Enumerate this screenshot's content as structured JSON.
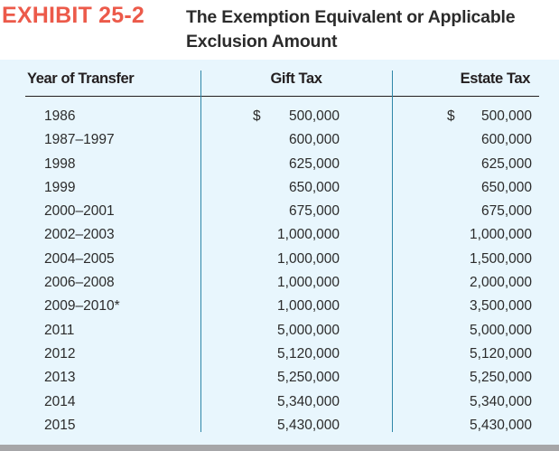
{
  "exhibit": {
    "label": "EXHIBIT 25-2",
    "title_line1": "The Exemption Equivalent or Applicable",
    "title_line2": "Exclusion Amount",
    "label_color": "#ec5a4a",
    "panel_color": "#e8f6fd",
    "divider_color": "#2e86a8"
  },
  "table": {
    "headers": {
      "year": "Year of Transfer",
      "gift": "Gift Tax",
      "estate": "Estate Tax"
    },
    "currency_symbol": "$",
    "rows": [
      {
        "year": "1986",
        "gift_currency": "$",
        "gift": "500,000",
        "estate_currency": "$",
        "estate": "500,000"
      },
      {
        "year": "1987–1997",
        "gift_currency": "",
        "gift": "600,000",
        "estate_currency": "",
        "estate": "600,000"
      },
      {
        "year": "1998",
        "gift_currency": "",
        "gift": "625,000",
        "estate_currency": "",
        "estate": "625,000"
      },
      {
        "year": "1999",
        "gift_currency": "",
        "gift": "650,000",
        "estate_currency": "",
        "estate": "650,000"
      },
      {
        "year": "2000–2001",
        "gift_currency": "",
        "gift": "675,000",
        "estate_currency": "",
        "estate": "675,000"
      },
      {
        "year": "2002–2003",
        "gift_currency": "",
        "gift": "1,000,000",
        "estate_currency": "",
        "estate": "1,000,000"
      },
      {
        "year": "2004–2005",
        "gift_currency": "",
        "gift": "1,000,000",
        "estate_currency": "",
        "estate": "1,500,000"
      },
      {
        "year": "2006–2008",
        "gift_currency": "",
        "gift": "1,000,000",
        "estate_currency": "",
        "estate": "2,000,000"
      },
      {
        "year": "2009–2010*",
        "gift_currency": "",
        "gift": "1,000,000",
        "estate_currency": "",
        "estate": "3,500,000"
      },
      {
        "year": "2011",
        "gift_currency": "",
        "gift": "5,000,000",
        "estate_currency": "",
        "estate": "5,000,000"
      },
      {
        "year": "2012",
        "gift_currency": "",
        "gift": "5,120,000",
        "estate_currency": "",
        "estate": "5,120,000"
      },
      {
        "year": "2013",
        "gift_currency": "",
        "gift": "5,250,000",
        "estate_currency": "",
        "estate": "5,250,000"
      },
      {
        "year": "2014",
        "gift_currency": "",
        "gift": "5,340,000",
        "estate_currency": "",
        "estate": "5,340,000"
      },
      {
        "year": "2015",
        "gift_currency": "",
        "gift": "5,430,000",
        "estate_currency": "",
        "estate": "5,430,000"
      }
    ]
  }
}
